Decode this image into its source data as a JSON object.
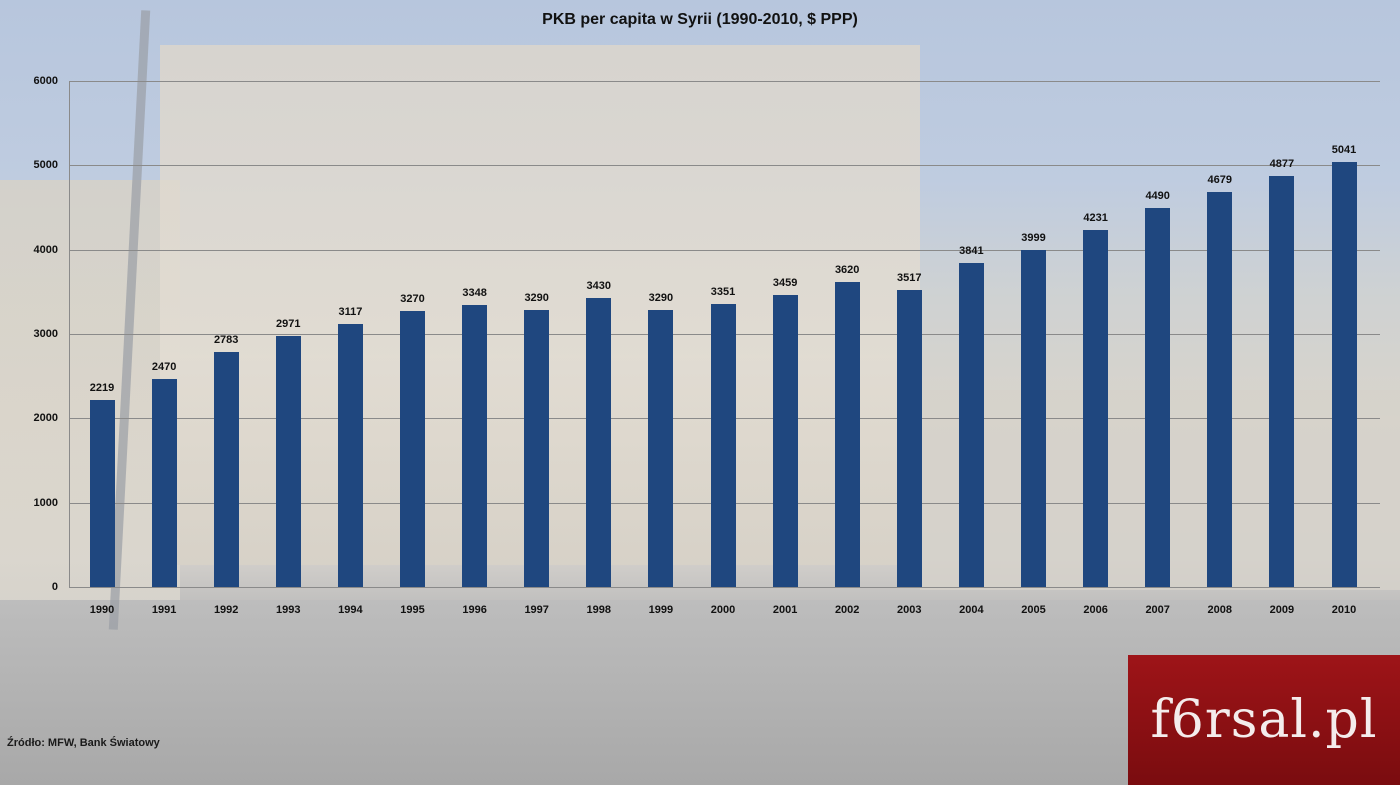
{
  "chart_data": {
    "type": "bar",
    "title": "PKB per capita w Syrii (1990-2010, $ PPP)",
    "xlabel": "",
    "ylabel": "",
    "ylim": [
      0,
      6000
    ],
    "yticks": [
      0,
      1000,
      2000,
      3000,
      4000,
      5000,
      6000
    ],
    "grid": true,
    "legend": null,
    "data_labels": true,
    "bar_color": "#1f477f",
    "categories": [
      "1990",
      "1991",
      "1992",
      "1993",
      "1994",
      "1995",
      "1996",
      "1997",
      "1998",
      "1999",
      "2000",
      "2001",
      "2002",
      "2003",
      "2004",
      "2005",
      "2006",
      "2007",
      "2008",
      "2009",
      "2010"
    ],
    "values": [
      2219,
      2470,
      2783,
      2971,
      3117,
      3270,
      3348,
      3290,
      3430,
      3290,
      3351,
      3459,
      3620,
      3517,
      3841,
      3999,
      4231,
      4490,
      4679,
      4877,
      5041
    ]
  },
  "footer": {
    "source": "Źródło: MFW, Bank Światowy",
    "logo_text": "f6rsal.pl",
    "logo_color": "#9e1418"
  }
}
